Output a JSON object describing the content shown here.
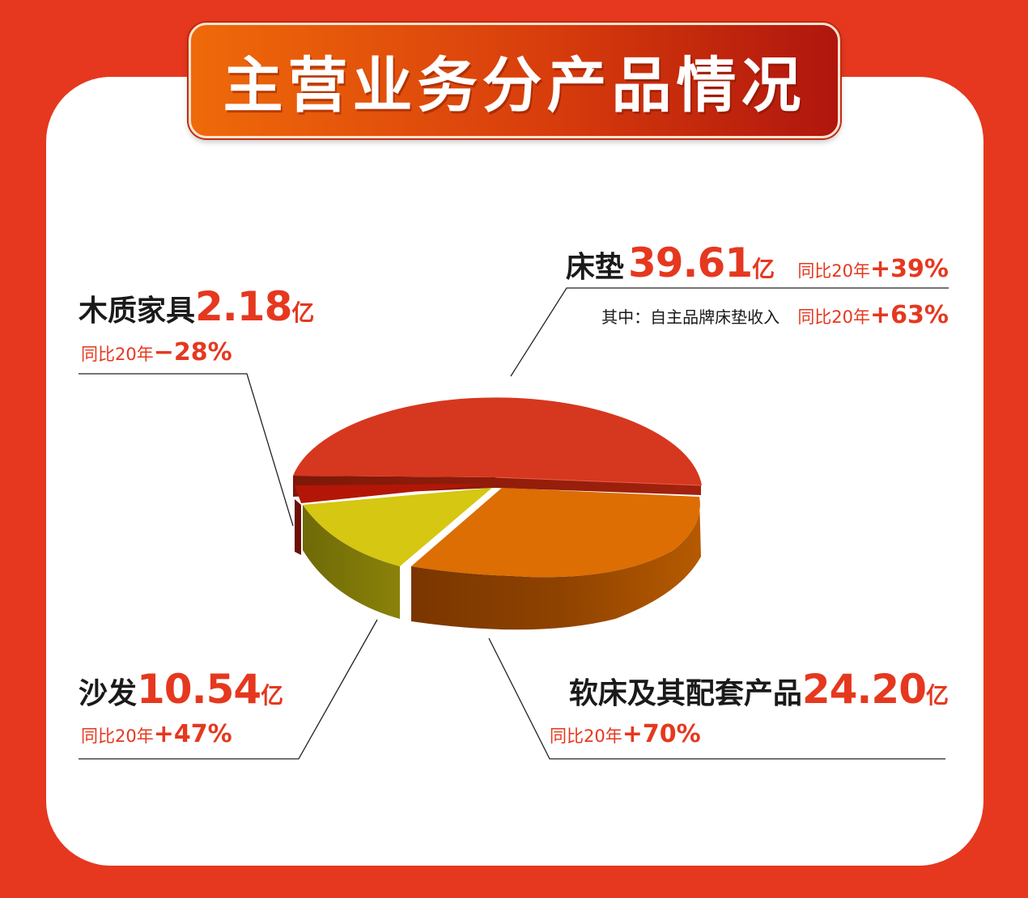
{
  "title": "主营业务分产品情况",
  "colors": {
    "background": "#e5381f",
    "accent": "#e5381f",
    "mattress": "#d6371f",
    "soft_bed": "#dc6e03",
    "sofa": "#d5c712",
    "wood": "#b31607"
  },
  "yoy_prefix": "同比20年",
  "unit": "亿",
  "labels": {
    "mattress": {
      "name": "床垫",
      "value": "39.61",
      "yoy": "+39%",
      "sub_label": "其中：自主品牌床垫收入",
      "sub_yoy": "+63%"
    },
    "wood": {
      "name": "木质家具",
      "value": "2.18",
      "yoy": "−28%"
    },
    "sofa": {
      "name": "沙发",
      "value": "10.54",
      "yoy": "+47%"
    },
    "soft_bed": {
      "name": "软床及其配套产品",
      "value": "24.20",
      "yoy": "+70%"
    }
  },
  "chart_data": {
    "type": "pie",
    "title": "主营业务分产品情况",
    "unit": "亿",
    "slices": [
      {
        "name": "床垫",
        "value": 39.61,
        "yoy": "+39%",
        "color": "#d6371f"
      },
      {
        "name": "软床及其配套产品",
        "value": 24.2,
        "yoy": "+70%",
        "color": "#dc6e03"
      },
      {
        "name": "沙发",
        "value": 10.54,
        "yoy": "+47%",
        "color": "#d5c712"
      },
      {
        "name": "木质家具",
        "value": 2.18,
        "yoy": "−28%",
        "color": "#b31607"
      }
    ],
    "sub_items": [
      {
        "name": "其中：自主品牌床垫收入",
        "parent": "床垫",
        "yoy": "+63%"
      }
    ],
    "style": "3d-exploded"
  }
}
